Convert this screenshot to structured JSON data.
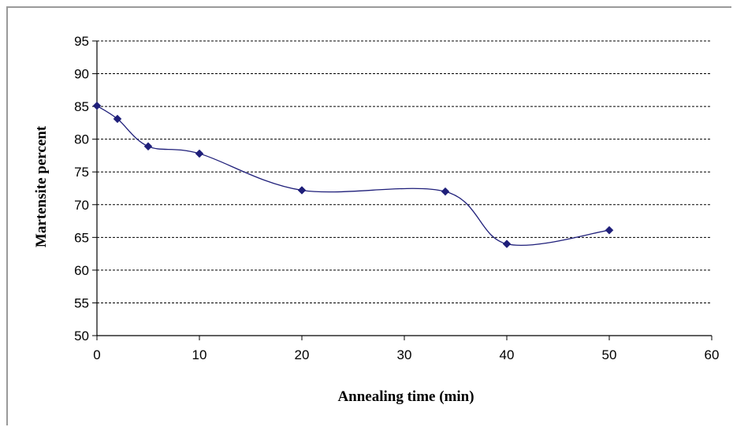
{
  "chart_data": {
    "type": "line",
    "title": "",
    "xlabel": "Annealing time (min)",
    "ylabel": "Martensite percent",
    "xlim": [
      0,
      60
    ],
    "ylim": [
      50,
      95
    ],
    "xticks": [
      0,
      10,
      20,
      30,
      40,
      50,
      60
    ],
    "yticks": [
      50,
      55,
      60,
      65,
      70,
      75,
      80,
      85,
      90,
      95
    ],
    "grid": "horizontal dashed",
    "legend": "none",
    "series": [
      {
        "x": [
          0,
          2,
          5,
          10,
          20,
          34,
          40,
          50
        ],
        "y": [
          85.1,
          83.1,
          78.9,
          77.8,
          72.2,
          72.0,
          64.0,
          66.1
        ],
        "color": "#1f1f7a",
        "marker": "diamond",
        "smooth": true
      }
    ]
  }
}
